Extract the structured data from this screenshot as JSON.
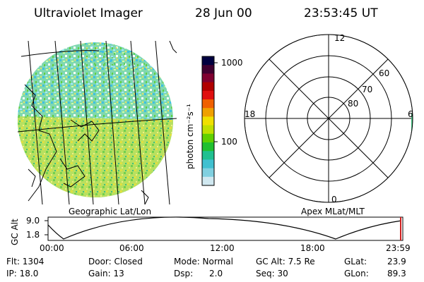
{
  "header": {
    "title": "Ultraviolet Imager",
    "date": "28 Jun 00",
    "time": "23:53:45 UT"
  },
  "colorbar": {
    "unit_label": "photon cm⁻²s⁻¹",
    "ticks": [
      "1000",
      "100"
    ],
    "colors": [
      "#000040",
      "#400030",
      "#800030",
      "#b00000",
      "#e01010",
      "#f06000",
      "#f0a000",
      "#f0e000",
      "#c0e000",
      "#60d000",
      "#20c030",
      "#20c090",
      "#40c0d0",
      "#80d0e0",
      "#d0e8f0"
    ]
  },
  "map_left": {
    "label": "Geographic Lat/Lon"
  },
  "polar_right": {
    "label": "Apex MLat/MLT",
    "mlt_labels": {
      "top": "12",
      "left": "18",
      "right": "6",
      "bottom": "0"
    },
    "lat_labels": [
      "60",
      "70",
      "80"
    ]
  },
  "altitude_plot": {
    "ylabel": "GC Alt",
    "yticks": [
      "9.0",
      "1.8"
    ],
    "xticks": [
      "00:00",
      "06:00",
      "12:00",
      "18:00",
      "23:59"
    ]
  },
  "footer": {
    "flt": "Flt: 1304",
    "ip": "IP: 18.0",
    "door": "Door: Closed",
    "gain": "Gain: 13",
    "mode": "Mode: Normal",
    "dsp_label": "Dsp:",
    "dsp_value": "2.0",
    "gc_alt": "GC Alt: 7.5 Re",
    "seq": "Seq: 30",
    "glat_label": "GLat:",
    "glat_value": "23.9",
    "glon_label": "GLon:",
    "glon_value": "89.3"
  }
}
